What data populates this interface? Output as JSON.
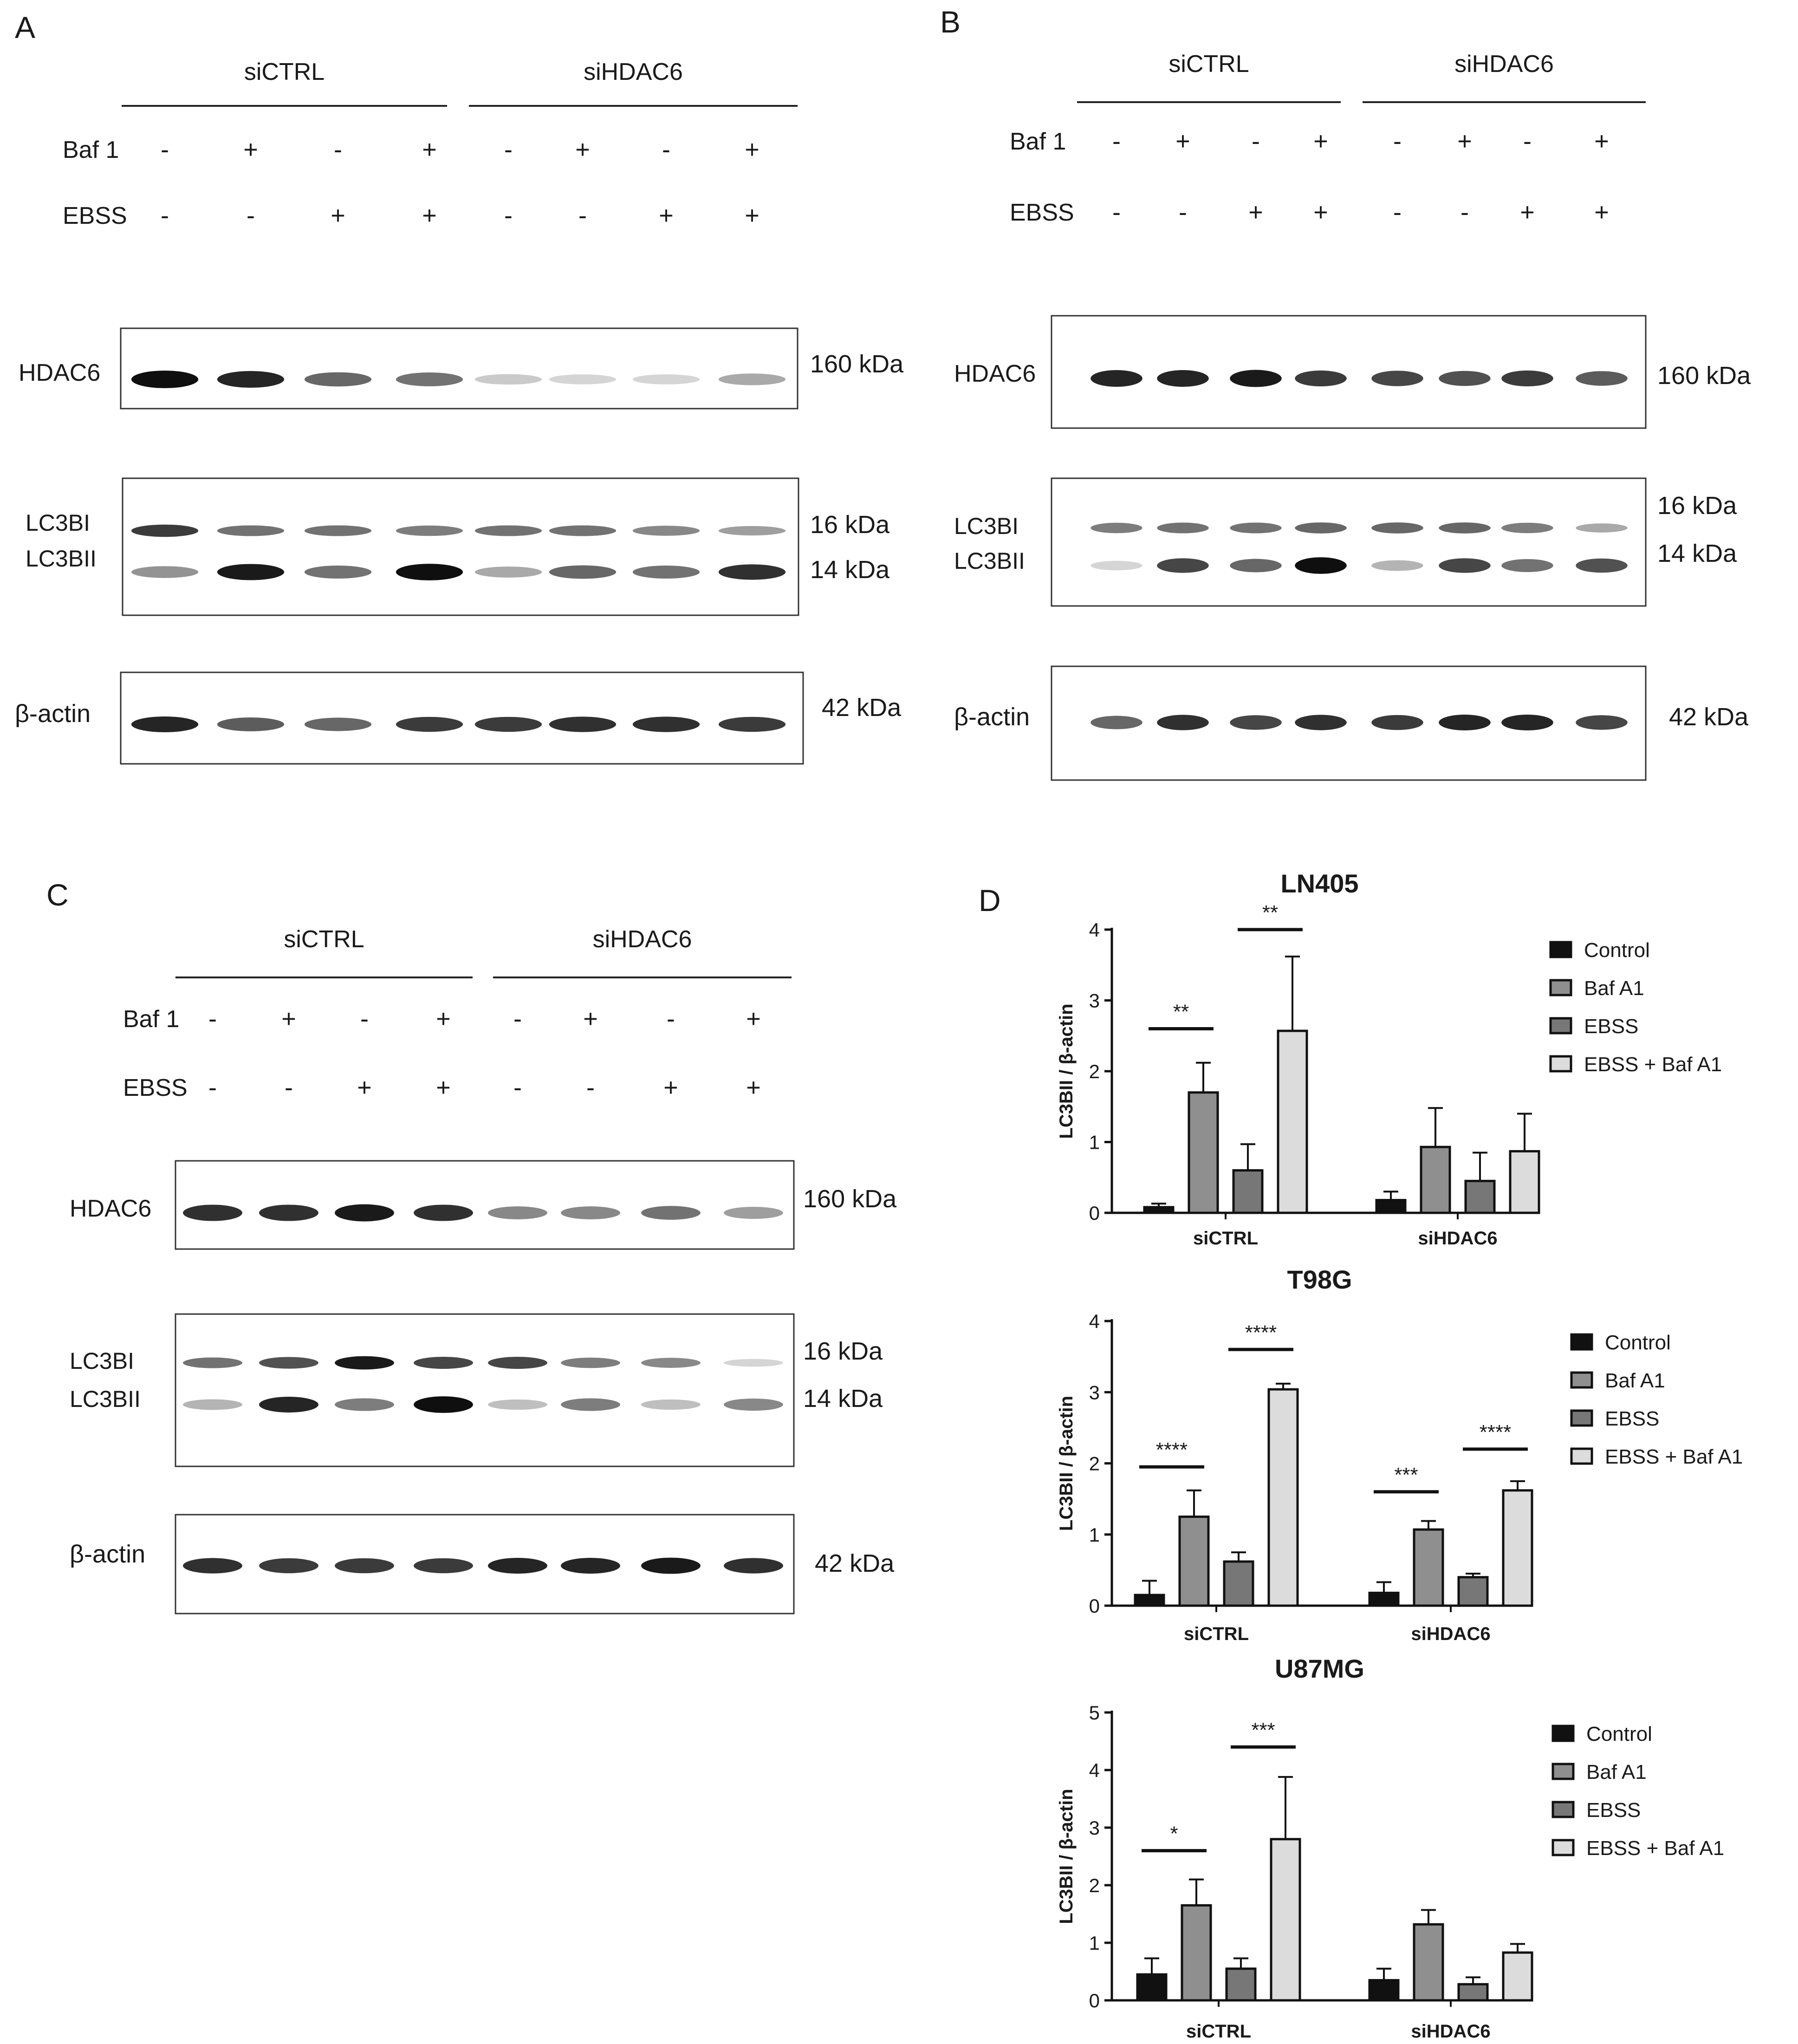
{
  "treatment_labels": {
    "baf": "Baf 1",
    "ebss": "EBSS"
  },
  "groups": [
    "siCTRL",
    "siHDAC6"
  ],
  "baf_signs": [
    "-",
    "+",
    "-",
    "+",
    "-",
    "+",
    "-",
    "+"
  ],
  "ebss_signs": [
    "-",
    "-",
    "+",
    "+",
    "-",
    "-",
    "+",
    "+"
  ],
  "blot_labels": {
    "hdac6": "HDAC6",
    "lc3bi": "LC3BI",
    "lc3bii": "LC3BII",
    "actin": "β-actin",
    "kda160": "160 kDa",
    "kda16": "16 kDa",
    "kda14": "14 kDa",
    "kda42": "42 kDa"
  },
  "panels": [
    {
      "letter": "A",
      "bands": {
        "hdac6": [
          1.0,
          0.9,
          0.6,
          0.55,
          0.15,
          0.1,
          0.1,
          0.3
        ],
        "lc3bi": [
          0.8,
          0.55,
          0.55,
          0.5,
          0.55,
          0.55,
          0.45,
          0.35
        ],
        "lc3bii": [
          0.4,
          0.95,
          0.55,
          1.0,
          0.3,
          0.6,
          0.55,
          0.85
        ],
        "actin": [
          0.9,
          0.65,
          0.6,
          0.8,
          0.8,
          0.85,
          0.85,
          0.8
        ]
      }
    },
    {
      "letter": "B",
      "bands": {
        "hdac6": [
          0.9,
          0.9,
          0.95,
          0.8,
          0.75,
          0.7,
          0.8,
          0.65
        ],
        "lc3bi": [
          0.5,
          0.55,
          0.55,
          0.6,
          0.6,
          0.6,
          0.5,
          0.3
        ],
        "lc3bii": [
          0.1,
          0.75,
          0.6,
          1.0,
          0.25,
          0.75,
          0.55,
          0.7
        ],
        "actin": [
          0.6,
          0.85,
          0.75,
          0.85,
          0.8,
          0.9,
          0.9,
          0.75
        ]
      }
    },
    {
      "letter": "C",
      "bands": {
        "hdac6": [
          0.85,
          0.85,
          0.95,
          0.85,
          0.45,
          0.45,
          0.55,
          0.35
        ],
        "lc3bi": [
          0.55,
          0.7,
          0.95,
          0.75,
          0.75,
          0.5,
          0.45,
          0.1
        ],
        "lc3bii": [
          0.25,
          0.9,
          0.5,
          1.0,
          0.2,
          0.5,
          0.2,
          0.45
        ],
        "actin": [
          0.85,
          0.8,
          0.8,
          0.8,
          0.9,
          0.9,
          0.95,
          0.85
        ]
      }
    }
  ],
  "panel_d_letter": "D",
  "chart_data": [
    {
      "type": "bar",
      "title": "LN405",
      "ylabel": "LC3BII / β-actin",
      "categories": [
        "siCTRL",
        "siHDAC6"
      ],
      "ylim": [
        0,
        4
      ],
      "yticks": [
        "0",
        "1",
        "2",
        "3",
        "4"
      ],
      "series": [
        {
          "name": "Control",
          "color": "#111111",
          "values": [
            0.08,
            0.18
          ],
          "errors": [
            0.05,
            0.12
          ]
        },
        {
          "name": "Baf A1",
          "color": "#8f8f8f",
          "values": [
            1.7,
            0.93
          ],
          "errors": [
            0.42,
            0.55
          ]
        },
        {
          "name": "EBSS",
          "color": "#777777",
          "values": [
            0.6,
            0.45
          ],
          "errors": [
            0.37,
            0.4
          ]
        },
        {
          "name": "EBSS + Baf A1",
          "color": "#dcdcdc",
          "values": [
            2.57,
            0.87
          ],
          "errors": [
            1.05,
            0.53
          ]
        }
      ],
      "significance": [
        {
          "category": 0,
          "from": 0,
          "to": 1,
          "y": 2.6,
          "label": "**"
        },
        {
          "category": 0,
          "from": 2,
          "to": 3,
          "y": 4.0,
          "label": "**"
        }
      ],
      "legend": "right"
    },
    {
      "type": "bar",
      "title": "T98G",
      "ylabel": "LC3BII / β-actin",
      "categories": [
        "siCTRL",
        "siHDAC6"
      ],
      "ylim": [
        0,
        4
      ],
      "yticks": [
        "0",
        "1",
        "2",
        "3",
        "4"
      ],
      "series": [
        {
          "name": "Control",
          "color": "#111111",
          "values": [
            0.15,
            0.18
          ],
          "errors": [
            0.2,
            0.15
          ]
        },
        {
          "name": "Baf A1",
          "color": "#8f8f8f",
          "values": [
            1.25,
            1.07
          ],
          "errors": [
            0.37,
            0.12
          ]
        },
        {
          "name": "EBSS",
          "color": "#777777",
          "values": [
            0.62,
            0.4
          ],
          "errors": [
            0.13,
            0.05
          ]
        },
        {
          "name": "EBSS + Baf A1",
          "color": "#dcdcdc",
          "values": [
            3.04,
            1.62
          ],
          "errors": [
            0.08,
            0.13
          ]
        }
      ],
      "significance": [
        {
          "category": 0,
          "from": 0,
          "to": 1,
          "y": 1.95,
          "label": "****"
        },
        {
          "category": 0,
          "from": 2,
          "to": 3,
          "y": 3.6,
          "label": "****"
        },
        {
          "category": 1,
          "from": 0,
          "to": 1,
          "y": 1.6,
          "label": "***"
        },
        {
          "category": 1,
          "from": 2,
          "to": 3,
          "y": 2.2,
          "label": "****"
        }
      ],
      "legend": "right"
    },
    {
      "type": "bar",
      "title": "U87MG",
      "ylabel": "LC3BII / β-actin",
      "categories": [
        "siCTRL",
        "siHDAC6"
      ],
      "ylim": [
        0,
        5
      ],
      "yticks": [
        "0",
        "1",
        "2",
        "3",
        "4",
        "5"
      ],
      "series": [
        {
          "name": "Control",
          "color": "#111111",
          "values": [
            0.45,
            0.35
          ],
          "errors": [
            0.28,
            0.2
          ]
        },
        {
          "name": "Baf A1",
          "color": "#8f8f8f",
          "values": [
            1.65,
            1.32
          ],
          "errors": [
            0.45,
            0.25
          ]
        },
        {
          "name": "EBSS",
          "color": "#777777",
          "values": [
            0.55,
            0.28
          ],
          "errors": [
            0.18,
            0.12
          ]
        },
        {
          "name": "EBSS + Baf A1",
          "color": "#dcdcdc",
          "values": [
            2.8,
            0.83
          ],
          "errors": [
            1.08,
            0.15
          ]
        }
      ],
      "significance": [
        {
          "category": 0,
          "from": 0,
          "to": 1,
          "y": 2.6,
          "label": "*"
        },
        {
          "category": 0,
          "from": 2,
          "to": 3,
          "y": 4.4,
          "label": "***"
        }
      ],
      "legend": "right"
    }
  ]
}
